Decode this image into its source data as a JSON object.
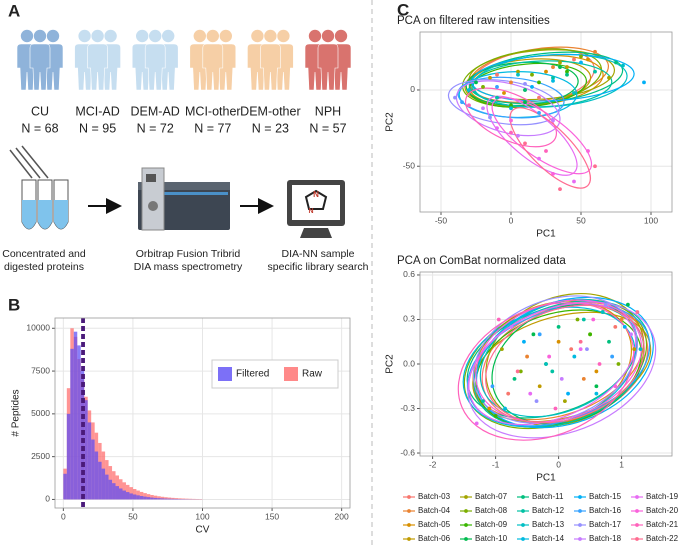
{
  "panel_a": {
    "label": "A",
    "groups": [
      {
        "name": "CU",
        "n": "N = 68",
        "color": "#8fb3da"
      },
      {
        "name": "MCI-AD",
        "n": "N = 95",
        "color": "#c6def0"
      },
      {
        "name": "DEM-AD",
        "n": "N = 72",
        "color": "#c6def0"
      },
      {
        "name": "MCI-other",
        "n": "N = 77",
        "color": "#f6cfa6"
      },
      {
        "name": "DEM-other",
        "n": "N = 23",
        "color": "#f6cfa6"
      },
      {
        "name": "NPH",
        "n": "N = 57",
        "color": "#d9736e"
      }
    ],
    "steps": [
      {
        "lines": [
          "Concentrated and",
          "digested proteins"
        ]
      },
      {
        "lines": [
          "Orbitrap Fusion Tribrid",
          "DIA mass spectrometry"
        ]
      },
      {
        "lines": [
          "DIA-NN sample",
          "specific library search"
        ]
      }
    ]
  },
  "chart_data": [
    {
      "type": "histogram",
      "panel": "B",
      "xlabel": "CV",
      "ylabel": "# Peptides",
      "bins": [
        0,
        2.5,
        5,
        7.5,
        10,
        12.5,
        15,
        17.5,
        20,
        22.5,
        25,
        27.5,
        30,
        32.5,
        35,
        37.5,
        40,
        42.5,
        45,
        47.5,
        50,
        52.5,
        55,
        57.5,
        60,
        62.5,
        65,
        67.5,
        70,
        72.5,
        75,
        77.5,
        80,
        82.5,
        85,
        87.5,
        90,
        92.5,
        95,
        97.5,
        100
      ],
      "series": [
        {
          "name": "Filtered",
          "color": "#5b4cf5",
          "values": [
            1500,
            5000,
            8800,
            9800,
            9000,
            7500,
            5800,
            4500,
            3500,
            2800,
            2200,
            1800,
            1450,
            1150,
            950,
            780,
            640,
            520,
            430,
            350,
            290,
            240,
            200,
            165,
            135,
            110,
            90,
            75,
            62,
            50,
            42,
            35,
            28,
            22,
            18,
            14,
            11,
            9,
            7,
            5
          ]
        },
        {
          "name": "Raw",
          "color": "#ff6b6b",
          "values": [
            1800,
            6500,
            10000,
            9500,
            8200,
            7000,
            6000,
            5200,
            4500,
            3900,
            3300,
            2800,
            2300,
            1950,
            1650,
            1400,
            1180,
            1000,
            850,
            720,
            610,
            520,
            440,
            370,
            310,
            260,
            220,
            185,
            155,
            130,
            110,
            92,
            78,
            65,
            55,
            46,
            38,
            32,
            26,
            21
          ]
        }
      ],
      "vlines": [
        13.5,
        14.8
      ],
      "vline_color": "#4b1a7a",
      "xlim": [
        -6,
        206
      ],
      "xticks": [
        0,
        50,
        100,
        150,
        200
      ],
      "ylim": [
        -500,
        10600
      ],
      "yticks": [
        0,
        2500,
        5000,
        7500,
        10000
      ],
      "grid": true,
      "legend": "upper right"
    },
    {
      "type": "scatter",
      "panel": "C",
      "title": "PCA on filtered raw intensities",
      "xlabel": "PC1",
      "ylabel": "PC2",
      "xlim": [
        -65,
        115
      ],
      "xticks": [
        -50,
        0,
        50,
        100
      ],
      "ylim": [
        -80,
        38
      ],
      "yticks": [
        -50,
        0
      ],
      "grid": true,
      "series": [
        {
          "color": "#F8766D",
          "x": [
            -10,
            20,
            45
          ],
          "y": [
            10,
            -5,
            20
          ],
          "ellipse": [
            15,
            8,
            45,
            18,
            10
          ]
        },
        {
          "color": "#EA8331",
          "x": [
            0,
            30,
            60
          ],
          "y": [
            5,
            15,
            25
          ],
          "ellipse": [
            20,
            10,
            50,
            17,
            8
          ]
        },
        {
          "color": "#D89000",
          "x": [
            -5,
            25,
            55
          ],
          "y": [
            -2,
            12,
            20
          ],
          "ellipse": [
            18,
            6,
            48,
            16,
            6
          ]
        },
        {
          "color": "#C09B00",
          "x": [
            -15,
            10,
            40
          ],
          "y": [
            8,
            0,
            15
          ],
          "ellipse": [
            12,
            5,
            45,
            15,
            5
          ]
        },
        {
          "color": "#A3A500",
          "x": [
            5,
            35,
            70
          ],
          "y": [
            12,
            18,
            8
          ],
          "ellipse": [
            22,
            10,
            52,
            16,
            4
          ]
        },
        {
          "color": "#7CAE00",
          "x": [
            -20,
            15,
            50
          ],
          "y": [
            2,
            10,
            22
          ],
          "ellipse": [
            15,
            8,
            50,
            18,
            8
          ]
        },
        {
          "color": "#39B600",
          "x": [
            0,
            20,
            40
          ],
          "y": [
            -10,
            5,
            12
          ],
          "ellipse": [
            12,
            3,
            42,
            14,
            5
          ]
        },
        {
          "color": "#00BB4E",
          "x": [
            -25,
            10,
            35
          ],
          "y": [
            5,
            -8,
            15
          ],
          "ellipse": [
            8,
            4,
            40,
            14,
            3
          ]
        },
        {
          "color": "#00BF7D",
          "x": [
            10,
            40,
            75
          ],
          "y": [
            0,
            10,
            18
          ],
          "ellipse": [
            25,
            8,
            55,
            16,
            6
          ]
        },
        {
          "color": "#00C1A3",
          "x": [
            -10,
            30,
            60
          ],
          "y": [
            -5,
            8,
            12
          ],
          "ellipse": [
            22,
            4,
            50,
            15,
            2
          ]
        },
        {
          "color": "#00BFC4",
          "x": [
            5,
            45,
            80
          ],
          "y": [
            10,
            -2,
            16
          ],
          "ellipse": [
            28,
            6,
            55,
            17,
            4
          ]
        },
        {
          "color": "#00BAE0",
          "x": [
            -30,
            0,
            30
          ],
          "y": [
            0,
            -12,
            6
          ],
          "ellipse": [
            5,
            -3,
            42,
            15,
            0
          ]
        },
        {
          "color": "#00B0F6",
          "x": [
            15,
            50,
            95
          ],
          "y": [
            2,
            18,
            5
          ],
          "ellipse": [
            30,
            8,
            58,
            15,
            3
          ]
        },
        {
          "color": "#35A2FF",
          "x": [
            -35,
            -10,
            20
          ],
          "y": [
            -8,
            2,
            -15
          ],
          "ellipse": [
            0,
            -5,
            38,
            13,
            -5
          ]
        },
        {
          "color": "#9590FF",
          "x": [
            -40,
            -15,
            10
          ],
          "y": [
            -5,
            -18,
            4
          ],
          "ellipse": [
            -5,
            -8,
            40,
            14,
            -8
          ]
        },
        {
          "color": "#C77CFF",
          "x": [
            -20,
            5,
            30
          ],
          "y": [
            -12,
            -30,
            -20
          ],
          "ellipse": [
            -2,
            -12,
            38,
            16,
            -15
          ]
        },
        {
          "color": "#E76BF3",
          "x": [
            -10,
            20,
            45
          ],
          "y": [
            -25,
            -45,
            -60
          ],
          "ellipse": [
            15,
            -30,
            40,
            14,
            -40
          ]
        },
        {
          "color": "#FA62DB",
          "x": [
            0,
            30,
            55
          ],
          "y": [
            -20,
            -55,
            -40
          ],
          "ellipse": [
            22,
            -30,
            42,
            14,
            -35
          ]
        },
        {
          "color": "#FF62BC",
          "x": [
            -30,
            0,
            25
          ],
          "y": [
            -10,
            -28,
            -40
          ],
          "ellipse": [
            0,
            -18,
            35,
            15,
            -25
          ]
        },
        {
          "color": "#FF6C91",
          "x": [
            10,
            35,
            60
          ],
          "y": [
            -35,
            -65,
            -50
          ],
          "ellipse": [
            28,
            -38,
            38,
            13,
            -45
          ]
        }
      ]
    },
    {
      "type": "scatter",
      "title": "PCA on ComBat normalized data",
      "xlabel": "PC1",
      "ylabel": "PC2",
      "xlim": [
        -2.2,
        1.8
      ],
      "xticks": [
        -2,
        -1,
        0,
        1
      ],
      "ylim": [
        -0.62,
        0.62
      ],
      "yticks": [
        -0.6,
        -0.3,
        {
          "value": 0,
          "label": "0.0"
        },
        0.3,
        0.6
      ],
      "grid": true,
      "legend": "bottom",
      "series": [
        {
          "name": "Batch-03",
          "color": "#F8766D",
          "x": [
            -0.8,
            0.2,
            0.9
          ],
          "y": [
            -0.2,
            0.1,
            0.25
          ],
          "ellipse": [
            0.1,
            0.0,
            1.35,
            0.38,
            18
          ]
        },
        {
          "name": "Batch-04",
          "color": "#EA8331",
          "x": [
            -0.5,
            0.4,
            1.0
          ],
          "y": [
            0.05,
            -0.1,
            0.3
          ],
          "ellipse": [
            0.0,
            0.02,
            1.4,
            0.36,
            20
          ]
        },
        {
          "name": "Batch-05",
          "color": "#D89000",
          "x": [
            -1.1,
            0.0,
            0.6
          ],
          "y": [
            -0.3,
            0.15,
            -0.05
          ],
          "ellipse": [
            -0.1,
            0.0,
            1.3,
            0.4,
            22
          ]
        },
        {
          "name": "Batch-06",
          "color": "#C09B00",
          "x": [
            -0.3,
            0.5,
            1.2
          ],
          "y": [
            -0.15,
            0.2,
            0.1
          ],
          "ellipse": [
            0.05,
            -0.02,
            1.45,
            0.34,
            16
          ]
        },
        {
          "name": "Batch-07",
          "color": "#A3A500",
          "x": [
            -0.9,
            0.1,
            0.7
          ],
          "y": [
            0.1,
            -0.25,
            0.35
          ],
          "ellipse": [
            0.1,
            0.03,
            1.3,
            0.42,
            24
          ]
        },
        {
          "name": "Batch-08",
          "color": "#7CAE00",
          "x": [
            -0.6,
            0.3,
            0.95
          ],
          "y": [
            -0.05,
            0.3,
            0.0
          ],
          "ellipse": [
            -0.05,
            0.0,
            1.5,
            0.4,
            20
          ]
        },
        {
          "name": "Batch-09",
          "color": "#39B600",
          "x": [
            -1.0,
            -0.2,
            0.5
          ],
          "y": [
            -0.35,
            0.0,
            0.2
          ],
          "ellipse": [
            0.0,
            -0.03,
            1.35,
            0.37,
            18
          ]
        },
        {
          "name": "Batch-10",
          "color": "#00BB4E",
          "x": [
            -0.4,
            0.6,
            1.1
          ],
          "y": [
            0.2,
            -0.15,
            0.4
          ],
          "ellipse": [
            0.15,
            0.0,
            1.25,
            0.38,
            22
          ]
        },
        {
          "name": "Batch-11",
          "color": "#00BF7D",
          "x": [
            -0.7,
            0.0,
            0.8
          ],
          "y": [
            -0.1,
            0.25,
            0.15
          ],
          "ellipse": [
            -0.1,
            0.02,
            1.4,
            0.35,
            19
          ]
        },
        {
          "name": "Batch-12",
          "color": "#00C1A3",
          "x": [
            -1.2,
            -0.1,
            0.4
          ],
          "y": [
            -0.25,
            -0.05,
            0.3
          ],
          "ellipse": [
            0.05,
            0.0,
            1.45,
            0.39,
            21
          ]
        },
        {
          "name": "Batch-13",
          "color": "#00BFC4",
          "x": [
            -0.2,
            0.7,
            1.3
          ],
          "y": [
            0.0,
            0.35,
            0.1
          ],
          "ellipse": [
            0.0,
            0.04,
            1.3,
            0.36,
            23
          ]
        },
        {
          "name": "Batch-14",
          "color": "#00BAE0",
          "x": [
            -0.85,
            0.25,
            0.6
          ],
          "y": [
            -0.3,
            0.05,
            -0.2
          ],
          "ellipse": [
            -0.15,
            -0.02,
            1.4,
            0.38,
            17
          ]
        },
        {
          "name": "Batch-15",
          "color": "#00B0F6",
          "x": [
            -0.55,
            0.15,
            1.05
          ],
          "y": [
            0.15,
            -0.2,
            0.25
          ],
          "ellipse": [
            0.1,
            0.01,
            1.45,
            0.41,
            20
          ]
        },
        {
          "name": "Batch-16",
          "color": "#35A2FF",
          "x": [
            -1.05,
            -0.3,
            0.85
          ],
          "y": [
            -0.15,
            0.2,
            0.05
          ],
          "ellipse": [
            0.0,
            -0.01,
            1.5,
            0.37,
            19
          ]
        },
        {
          "name": "Batch-17",
          "color": "#9590FF",
          "x": [
            -0.35,
            0.45,
            0.75
          ],
          "y": [
            -0.25,
            0.1,
            0.4
          ],
          "ellipse": [
            -0.05,
            0.03,
            1.35,
            0.4,
            22
          ]
        },
        {
          "name": "Batch-18",
          "color": "#C77CFF",
          "x": [
            -0.75,
            0.05,
            1.15
          ],
          "y": [
            0.25,
            -0.1,
            0.2
          ],
          "ellipse": [
            0.05,
            -0.04,
            1.55,
            0.42,
            21
          ]
        },
        {
          "name": "Batch-19",
          "color": "#E76BF3",
          "x": [
            -1.3,
            -0.45,
            0.35
          ],
          "y": [
            -0.4,
            -0.2,
            0.1
          ],
          "ellipse": [
            -0.1,
            0.0,
            1.4,
            0.36,
            24
          ]
        },
        {
          "name": "Batch-20",
          "color": "#FA62DB",
          "x": [
            -0.15,
            0.55,
            0.9
          ],
          "y": [
            0.05,
            0.3,
            -0.15
          ],
          "ellipse": [
            0.0,
            0.02,
            1.35,
            0.39,
            18
          ]
        },
        {
          "name": "Batch-21",
          "color": "#FF62BC",
          "x": [
            -0.95,
            -0.05,
            0.65
          ],
          "y": [
            0.3,
            -0.3,
            0.0
          ],
          "ellipse": [
            -0.2,
            -0.05,
            1.45,
            0.43,
            23
          ]
        },
        {
          "name": "Batch-22",
          "color": "#FF6C91",
          "x": [
            -0.65,
            0.35,
            1.25
          ],
          "y": [
            -0.05,
            0.15,
            0.35
          ],
          "ellipse": [
            0.1,
            0.0,
            1.3,
            0.37,
            20
          ]
        }
      ]
    }
  ]
}
